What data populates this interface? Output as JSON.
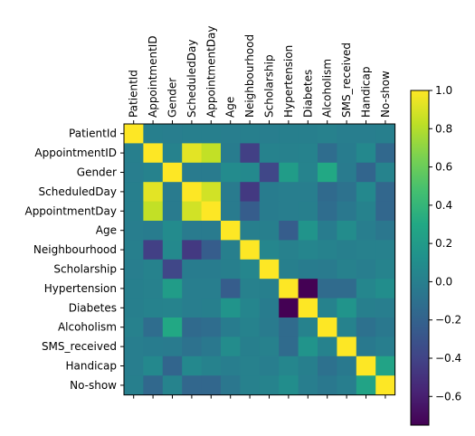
{
  "chart_data": {
    "type": "heatmap",
    "title": "",
    "xlabel": "",
    "ylabel": "",
    "labels": [
      "PatientId",
      "AppointmentID",
      "Gender",
      "ScheduledDay",
      "AppointmentDay",
      "Age",
      "Neighbourhood",
      "Scholarship",
      "Hypertension",
      "Diabetes",
      "Alcoholism",
      "SMS_received",
      "Handicap",
      "No-show"
    ],
    "values": [
      [
        1.0,
        0.0,
        -0.01,
        0.0,
        0.0,
        -0.01,
        0.0,
        -0.01,
        0.0,
        0.0,
        0.01,
        -0.01,
        -0.01,
        0.0
      ],
      [
        0.0,
        1.0,
        0.02,
        0.93,
        0.84,
        -0.02,
        -0.42,
        0.02,
        0.01,
        0.02,
        -0.13,
        -0.02,
        0.06,
        -0.16
      ],
      [
        -0.01,
        0.02,
        1.0,
        -0.03,
        -0.03,
        0.08,
        0.07,
        -0.38,
        0.21,
        0.03,
        0.3,
        -0.03,
        -0.18,
        0.03
      ],
      [
        0.0,
        0.93,
        -0.03,
        1.0,
        0.88,
        -0.03,
        -0.46,
        -0.02,
        -0.01,
        -0.01,
        -0.15,
        -0.09,
        0.06,
        -0.17
      ],
      [
        0.0,
        0.84,
        -0.03,
        0.88,
        1.0,
        -0.03,
        -0.24,
        -0.02,
        -0.01,
        0.0,
        -0.13,
        -0.05,
        0.02,
        -0.17
      ],
      [
        -0.01,
        -0.02,
        0.08,
        -0.03,
        -0.03,
        1.0,
        0.0,
        0.0,
        -0.24,
        0.15,
        -0.02,
        0.09,
        -0.01,
        -0.06
      ],
      [
        0.0,
        -0.42,
        0.07,
        -0.46,
        -0.24,
        0.0,
        1.0,
        0.05,
        0.01,
        0.04,
        0.02,
        0.0,
        0.01,
        0.01
      ],
      [
        -0.01,
        0.02,
        -0.38,
        -0.02,
        -0.02,
        0.0,
        0.05,
        1.0,
        0.0,
        -0.02,
        -0.03,
        0.01,
        -0.01,
        0.03
      ],
      [
        0.0,
        0.01,
        0.21,
        -0.01,
        -0.01,
        -0.24,
        0.01,
        0.0,
        1.0,
        -0.75,
        -0.14,
        -0.14,
        0.05,
        0.1
      ],
      [
        0.0,
        0.02,
        0.03,
        -0.01,
        0.0,
        0.15,
        0.04,
        -0.02,
        -0.75,
        1.0,
        0.02,
        0.15,
        0.0,
        -0.01
      ],
      [
        0.01,
        -0.13,
        0.3,
        -0.15,
        -0.13,
        -0.02,
        0.02,
        -0.03,
        -0.14,
        0.02,
        1.0,
        0.02,
        -0.1,
        -0.05
      ],
      [
        -0.01,
        -0.02,
        -0.03,
        -0.09,
        -0.05,
        0.09,
        0.0,
        0.01,
        -0.14,
        0.15,
        0.02,
        1.0,
        -0.04,
        -0.01
      ],
      [
        -0.01,
        0.06,
        -0.18,
        0.06,
        0.02,
        -0.01,
        0.01,
        -0.01,
        0.05,
        0.0,
        -0.1,
        -0.04,
        1.0,
        0.26
      ],
      [
        0.0,
        -0.16,
        0.03,
        -0.17,
        -0.17,
        -0.06,
        0.01,
        0.03,
        0.1,
        -0.01,
        -0.05,
        -0.01,
        0.26,
        1.0
      ]
    ],
    "vmin": -0.75,
    "vmax": 1.0,
    "colormap": "viridis",
    "colorbar_ticks": [
      1.0,
      0.8,
      0.6,
      0.4,
      0.2,
      0.0,
      -0.2,
      -0.4,
      -0.6
    ],
    "colorbar_tick_labels": [
      "1.0",
      "0.8",
      "0.6",
      "0.4",
      "0.2",
      "0.0",
      "−0.2",
      "−0.4",
      "−0.6"
    ],
    "x_tick_position": "top",
    "colorbar_position": "right",
    "grid": false
  }
}
